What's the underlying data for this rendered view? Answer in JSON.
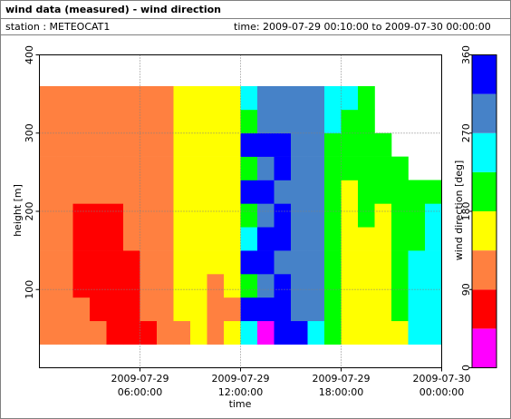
{
  "header": {
    "title": "wind data (measured) - wind direction",
    "station": "station : METEOCAT1",
    "time": "time: 2009-07-29 00:10:00 to 2009-07-30 00:00:00"
  },
  "chart_data": {
    "type": "heatmap",
    "xlabel": "time",
    "ylabel": "height [m]",
    "xlim": [
      0,
      24
    ],
    "xticks": [
      {
        "value": 6,
        "label": [
          "2009-07-29",
          "06:00:00"
        ]
      },
      {
        "value": 12,
        "label": [
          "2009-07-29",
          "12:00:00"
        ]
      },
      {
        "value": 18,
        "label": [
          "2009-07-29",
          "18:00:00"
        ]
      },
      {
        "value": 24,
        "label": [
          "2009-07-30",
          "00:00:00"
        ]
      }
    ],
    "ylim": [
      0,
      400
    ],
    "yticks": [
      100,
      200,
      300,
      400
    ],
    "grid": true,
    "xbins": [
      0,
      1,
      2,
      3,
      4,
      5,
      6,
      7,
      8,
      9,
      10,
      11,
      12,
      13,
      14,
      15,
      16,
      17,
      18,
      19,
      20,
      21,
      22,
      23,
      24
    ],
    "ybins": [
      30,
      60,
      90,
      120,
      150,
      180,
      210,
      240,
      270,
      300,
      330,
      360
    ],
    "values": [
      [
        112.5,
        112.5,
        112.5,
        112.5,
        112.5,
        112.5,
        112.5,
        112.5,
        112.5,
        112.5,
        112.5
      ],
      [
        112.5,
        112.5,
        112.5,
        112.5,
        112.5,
        112.5,
        112.5,
        112.5,
        112.5,
        112.5,
        112.5
      ],
      [
        112.5,
        112.5,
        67.5,
        67.5,
        67.5,
        67.5,
        112.5,
        112.5,
        112.5,
        112.5,
        112.5
      ],
      [
        112.5,
        67.5,
        67.5,
        67.5,
        67.5,
        67.5,
        112.5,
        112.5,
        112.5,
        112.5,
        112.5
      ],
      [
        67.5,
        67.5,
        67.5,
        67.5,
        67.5,
        67.5,
        112.5,
        112.5,
        112.5,
        112.5,
        112.5
      ],
      [
        67.5,
        67.5,
        67.5,
        67.5,
        112.5,
        112.5,
        112.5,
        112.5,
        112.5,
        112.5,
        112.5
      ],
      [
        67.5,
        112.5,
        112.5,
        112.5,
        112.5,
        112.5,
        112.5,
        112.5,
        112.5,
        112.5,
        112.5
      ],
      [
        112.5,
        112.5,
        112.5,
        112.5,
        112.5,
        112.5,
        112.5,
        112.5,
        112.5,
        112.5,
        112.5
      ],
      [
        112.5,
        157.5,
        157.5,
        157.5,
        157.5,
        157.5,
        157.5,
        157.5,
        157.5,
        157.5,
        157.5
      ],
      [
        157.5,
        157.5,
        157.5,
        157.5,
        157.5,
        157.5,
        157.5,
        157.5,
        157.5,
        157.5,
        157.5
      ],
      [
        112.5,
        112.5,
        112.5,
        157.5,
        157.5,
        157.5,
        157.5,
        157.5,
        157.5,
        157.5,
        157.5
      ],
      [
        157.5,
        112.5,
        157.5,
        157.5,
        157.5,
        157.5,
        157.5,
        157.5,
        157.5,
        157.5,
        157.5
      ],
      [
        247.5,
        337.5,
        202.5,
        337.5,
        247.5,
        202.5,
        337.5,
        202.5,
        337.5,
        202.5,
        247.5
      ],
      [
        22.5,
        337.5,
        292.5,
        337.5,
        337.5,
        292.5,
        337.5,
        292.5,
        337.5,
        292.5,
        292.5
      ],
      [
        337.5,
        337.5,
        337.5,
        292.5,
        337.5,
        337.5,
        292.5,
        337.5,
        337.5,
        292.5,
        292.5
      ],
      [
        337.5,
        292.5,
        292.5,
        292.5,
        292.5,
        292.5,
        292.5,
        292.5,
        292.5,
        292.5,
        292.5
      ],
      [
        247.5,
        292.5,
        292.5,
        292.5,
        292.5,
        292.5,
        292.5,
        292.5,
        292.5,
        292.5,
        292.5
      ],
      [
        202.5,
        202.5,
        202.5,
        202.5,
        202.5,
        202.5,
        202.5,
        202.5,
        202.5,
        247.5,
        247.5
      ],
      [
        157.5,
        157.5,
        157.5,
        157.5,
        157.5,
        157.5,
        157.5,
        202.5,
        202.5,
        202.5,
        247.5
      ],
      [
        157.5,
        157.5,
        157.5,
        157.5,
        157.5,
        202.5,
        202.5,
        202.5,
        202.5,
        202.5,
        202.5
      ],
      [
        157.5,
        157.5,
        157.5,
        157.5,
        157.5,
        157.5,
        202.5,
        202.5,
        202.5,
        null,
        null
      ],
      [
        157.5,
        202.5,
        202.5,
        202.5,
        202.5,
        202.5,
        202.5,
        202.5,
        null,
        null,
        null
      ],
      [
        247.5,
        247.5,
        247.5,
        247.5,
        202.5,
        202.5,
        202.5,
        null,
        null,
        null,
        null
      ],
      [
        247.5,
        247.5,
        247.5,
        247.5,
        247.5,
        247.5,
        202.5,
        null,
        null,
        null,
        null
      ]
    ],
    "colorbar": {
      "label": "wind direction [deg]",
      "lim": [
        0,
        360
      ],
      "ticks": [
        0,
        90,
        180,
        270,
        360
      ],
      "bins": [
        0,
        45,
        90,
        135,
        180,
        225,
        270,
        315,
        360
      ],
      "colors": [
        "#ff00ff",
        "#ff0000",
        "#ff8040",
        "#ffff00",
        "#00ff00",
        "#00ffff",
        "#4682c8",
        "#0000ff"
      ]
    }
  }
}
